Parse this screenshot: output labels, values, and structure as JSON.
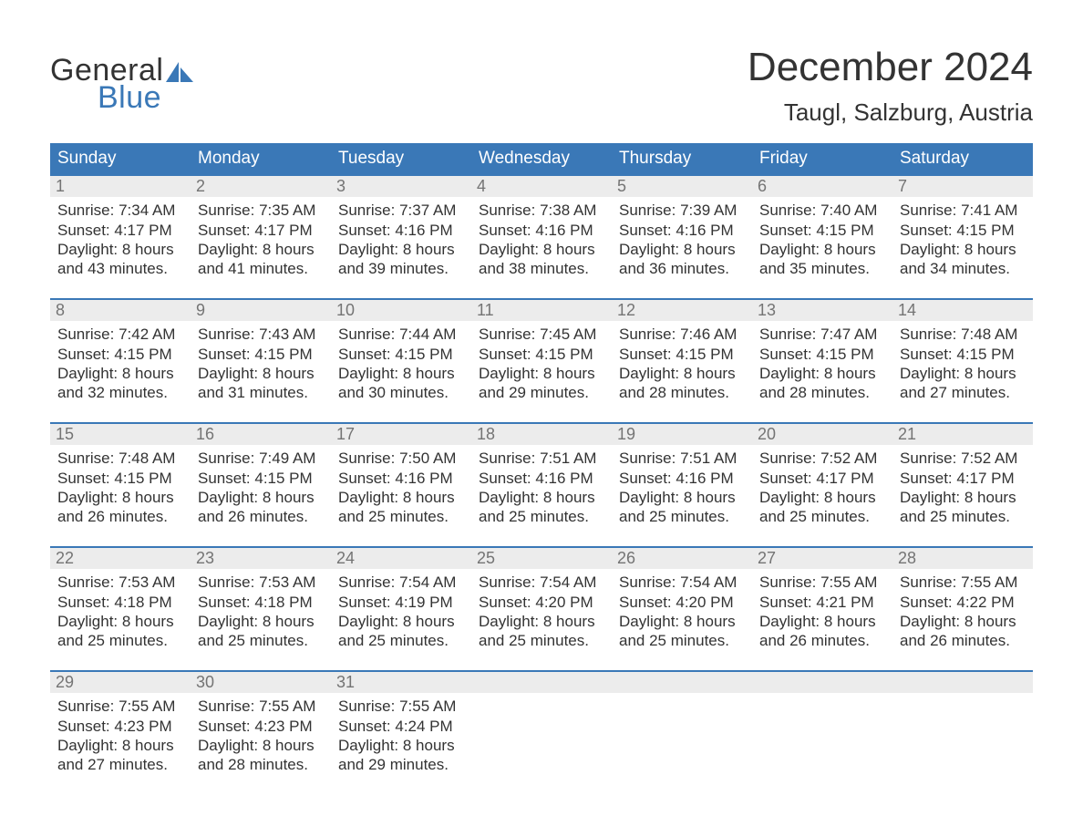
{
  "logo": {
    "word1": "General",
    "word2": "Blue",
    "word1_color": "#333333",
    "word2_color": "#3a78b7",
    "sail_color": "#3a78b7"
  },
  "title": "December 2024",
  "location": "Taugl, Salzburg, Austria",
  "colors": {
    "header_bg": "#3a78b7",
    "header_text": "#ffffff",
    "daynum_bg": "#ececec",
    "daynum_text": "#747474",
    "body_text": "#333333",
    "rule": "#3a78b7",
    "page_bg": "#ffffff"
  },
  "typography": {
    "title_fontsize": 44,
    "location_fontsize": 26,
    "header_fontsize": 19,
    "daynum_fontsize": 18,
    "body_fontsize": 17,
    "logo_fontsize": 34
  },
  "day_headers": [
    "Sunday",
    "Monday",
    "Tuesday",
    "Wednesday",
    "Thursday",
    "Friday",
    "Saturday"
  ],
  "weeks": [
    [
      {
        "n": "1",
        "sr": "Sunrise: 7:34 AM",
        "ss": "Sunset: 4:17 PM",
        "d1": "Daylight: 8 hours",
        "d2": "and 43 minutes."
      },
      {
        "n": "2",
        "sr": "Sunrise: 7:35 AM",
        "ss": "Sunset: 4:17 PM",
        "d1": "Daylight: 8 hours",
        "d2": "and 41 minutes."
      },
      {
        "n": "3",
        "sr": "Sunrise: 7:37 AM",
        "ss": "Sunset: 4:16 PM",
        "d1": "Daylight: 8 hours",
        "d2": "and 39 minutes."
      },
      {
        "n": "4",
        "sr": "Sunrise: 7:38 AM",
        "ss": "Sunset: 4:16 PM",
        "d1": "Daylight: 8 hours",
        "d2": "and 38 minutes."
      },
      {
        "n": "5",
        "sr": "Sunrise: 7:39 AM",
        "ss": "Sunset: 4:16 PM",
        "d1": "Daylight: 8 hours",
        "d2": "and 36 minutes."
      },
      {
        "n": "6",
        "sr": "Sunrise: 7:40 AM",
        "ss": "Sunset: 4:15 PM",
        "d1": "Daylight: 8 hours",
        "d2": "and 35 minutes."
      },
      {
        "n": "7",
        "sr": "Sunrise: 7:41 AM",
        "ss": "Sunset: 4:15 PM",
        "d1": "Daylight: 8 hours",
        "d2": "and 34 minutes."
      }
    ],
    [
      {
        "n": "8",
        "sr": "Sunrise: 7:42 AM",
        "ss": "Sunset: 4:15 PM",
        "d1": "Daylight: 8 hours",
        "d2": "and 32 minutes."
      },
      {
        "n": "9",
        "sr": "Sunrise: 7:43 AM",
        "ss": "Sunset: 4:15 PM",
        "d1": "Daylight: 8 hours",
        "d2": "and 31 minutes."
      },
      {
        "n": "10",
        "sr": "Sunrise: 7:44 AM",
        "ss": "Sunset: 4:15 PM",
        "d1": "Daylight: 8 hours",
        "d2": "and 30 minutes."
      },
      {
        "n": "11",
        "sr": "Sunrise: 7:45 AM",
        "ss": "Sunset: 4:15 PM",
        "d1": "Daylight: 8 hours",
        "d2": "and 29 minutes."
      },
      {
        "n": "12",
        "sr": "Sunrise: 7:46 AM",
        "ss": "Sunset: 4:15 PM",
        "d1": "Daylight: 8 hours",
        "d2": "and 28 minutes."
      },
      {
        "n": "13",
        "sr": "Sunrise: 7:47 AM",
        "ss": "Sunset: 4:15 PM",
        "d1": "Daylight: 8 hours",
        "d2": "and 28 minutes."
      },
      {
        "n": "14",
        "sr": "Sunrise: 7:48 AM",
        "ss": "Sunset: 4:15 PM",
        "d1": "Daylight: 8 hours",
        "d2": "and 27 minutes."
      }
    ],
    [
      {
        "n": "15",
        "sr": "Sunrise: 7:48 AM",
        "ss": "Sunset: 4:15 PM",
        "d1": "Daylight: 8 hours",
        "d2": "and 26 minutes."
      },
      {
        "n": "16",
        "sr": "Sunrise: 7:49 AM",
        "ss": "Sunset: 4:15 PM",
        "d1": "Daylight: 8 hours",
        "d2": "and 26 minutes."
      },
      {
        "n": "17",
        "sr": "Sunrise: 7:50 AM",
        "ss": "Sunset: 4:16 PM",
        "d1": "Daylight: 8 hours",
        "d2": "and 25 minutes."
      },
      {
        "n": "18",
        "sr": "Sunrise: 7:51 AM",
        "ss": "Sunset: 4:16 PM",
        "d1": "Daylight: 8 hours",
        "d2": "and 25 minutes."
      },
      {
        "n": "19",
        "sr": "Sunrise: 7:51 AM",
        "ss": "Sunset: 4:16 PM",
        "d1": "Daylight: 8 hours",
        "d2": "and 25 minutes."
      },
      {
        "n": "20",
        "sr": "Sunrise: 7:52 AM",
        "ss": "Sunset: 4:17 PM",
        "d1": "Daylight: 8 hours",
        "d2": "and 25 minutes."
      },
      {
        "n": "21",
        "sr": "Sunrise: 7:52 AM",
        "ss": "Sunset: 4:17 PM",
        "d1": "Daylight: 8 hours",
        "d2": "and 25 minutes."
      }
    ],
    [
      {
        "n": "22",
        "sr": "Sunrise: 7:53 AM",
        "ss": "Sunset: 4:18 PM",
        "d1": "Daylight: 8 hours",
        "d2": "and 25 minutes."
      },
      {
        "n": "23",
        "sr": "Sunrise: 7:53 AM",
        "ss": "Sunset: 4:18 PM",
        "d1": "Daylight: 8 hours",
        "d2": "and 25 minutes."
      },
      {
        "n": "24",
        "sr": "Sunrise: 7:54 AM",
        "ss": "Sunset: 4:19 PM",
        "d1": "Daylight: 8 hours",
        "d2": "and 25 minutes."
      },
      {
        "n": "25",
        "sr": "Sunrise: 7:54 AM",
        "ss": "Sunset: 4:20 PM",
        "d1": "Daylight: 8 hours",
        "d2": "and 25 minutes."
      },
      {
        "n": "26",
        "sr": "Sunrise: 7:54 AM",
        "ss": "Sunset: 4:20 PM",
        "d1": "Daylight: 8 hours",
        "d2": "and 25 minutes."
      },
      {
        "n": "27",
        "sr": "Sunrise: 7:55 AM",
        "ss": "Sunset: 4:21 PM",
        "d1": "Daylight: 8 hours",
        "d2": "and 26 minutes."
      },
      {
        "n": "28",
        "sr": "Sunrise: 7:55 AM",
        "ss": "Sunset: 4:22 PM",
        "d1": "Daylight: 8 hours",
        "d2": "and 26 minutes."
      }
    ],
    [
      {
        "n": "29",
        "sr": "Sunrise: 7:55 AM",
        "ss": "Sunset: 4:23 PM",
        "d1": "Daylight: 8 hours",
        "d2": "and 27 minutes."
      },
      {
        "n": "30",
        "sr": "Sunrise: 7:55 AM",
        "ss": "Sunset: 4:23 PM",
        "d1": "Daylight: 8 hours",
        "d2": "and 28 minutes."
      },
      {
        "n": "31",
        "sr": "Sunrise: 7:55 AM",
        "ss": "Sunset: 4:24 PM",
        "d1": "Daylight: 8 hours",
        "d2": "and 29 minutes."
      },
      null,
      null,
      null,
      null
    ]
  ]
}
